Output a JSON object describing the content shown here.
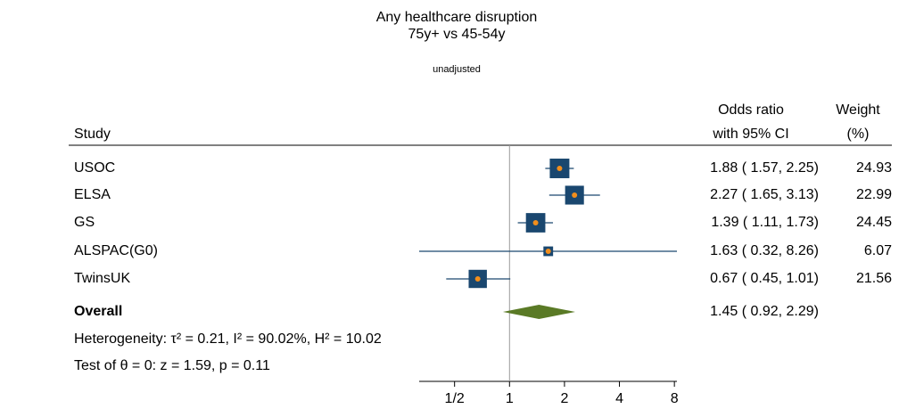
{
  "chart_data": {
    "type": "forest",
    "title": "Any healthcare disruption",
    "subtitle": "75y+ vs 45-54y",
    "note": "unadjusted",
    "columns": {
      "study": "Study",
      "effect": [
        "Odds ratio",
        "with 95% CI"
      ],
      "weight": [
        "Weight",
        "(%)"
      ]
    },
    "categories": [
      "USOC",
      "ELSA",
      "GS",
      "ALSPAC(G0)",
      "TwinsUK"
    ],
    "values": [
      1.88,
      2.27,
      1.39,
      1.63,
      0.67
    ],
    "lower": [
      1.57,
      1.65,
      1.11,
      0.32,
      0.45
    ],
    "upper": [
      2.25,
      3.13,
      1.73,
      8.26,
      1.01
    ],
    "value_labels": [
      "1.88 ( 1.57, 2.25)",
      "2.27 ( 1.65, 3.13)",
      "1.39 ( 1.11, 1.73)",
      "1.63 ( 0.32, 8.26)",
      "0.67 ( 0.45, 1.01)"
    ],
    "weights": [
      24.93,
      22.99,
      24.45,
      6.07,
      21.56
    ],
    "overall": {
      "label": "Overall",
      "value": 1.45,
      "lower": 0.92,
      "upper": 2.29,
      "value_label": "1.45 ( 0.92, 2.29)"
    },
    "heterogeneity": "Heterogeneity: τ² = 0.21, I² = 90.02%, H² = 10.02",
    "test": "Test of θ = 0: z = 1.59, p = 0.11",
    "xlim": [
      0.32,
      8.26
    ],
    "xticks": [
      {
        "value": 0.5,
        "label": "1/2"
      },
      1,
      2,
      4,
      8
    ],
    "log_scale": true,
    "marker_color": "#1a476f",
    "point_color": "#f28e1c",
    "diamond_color": "#5a7a26"
  }
}
